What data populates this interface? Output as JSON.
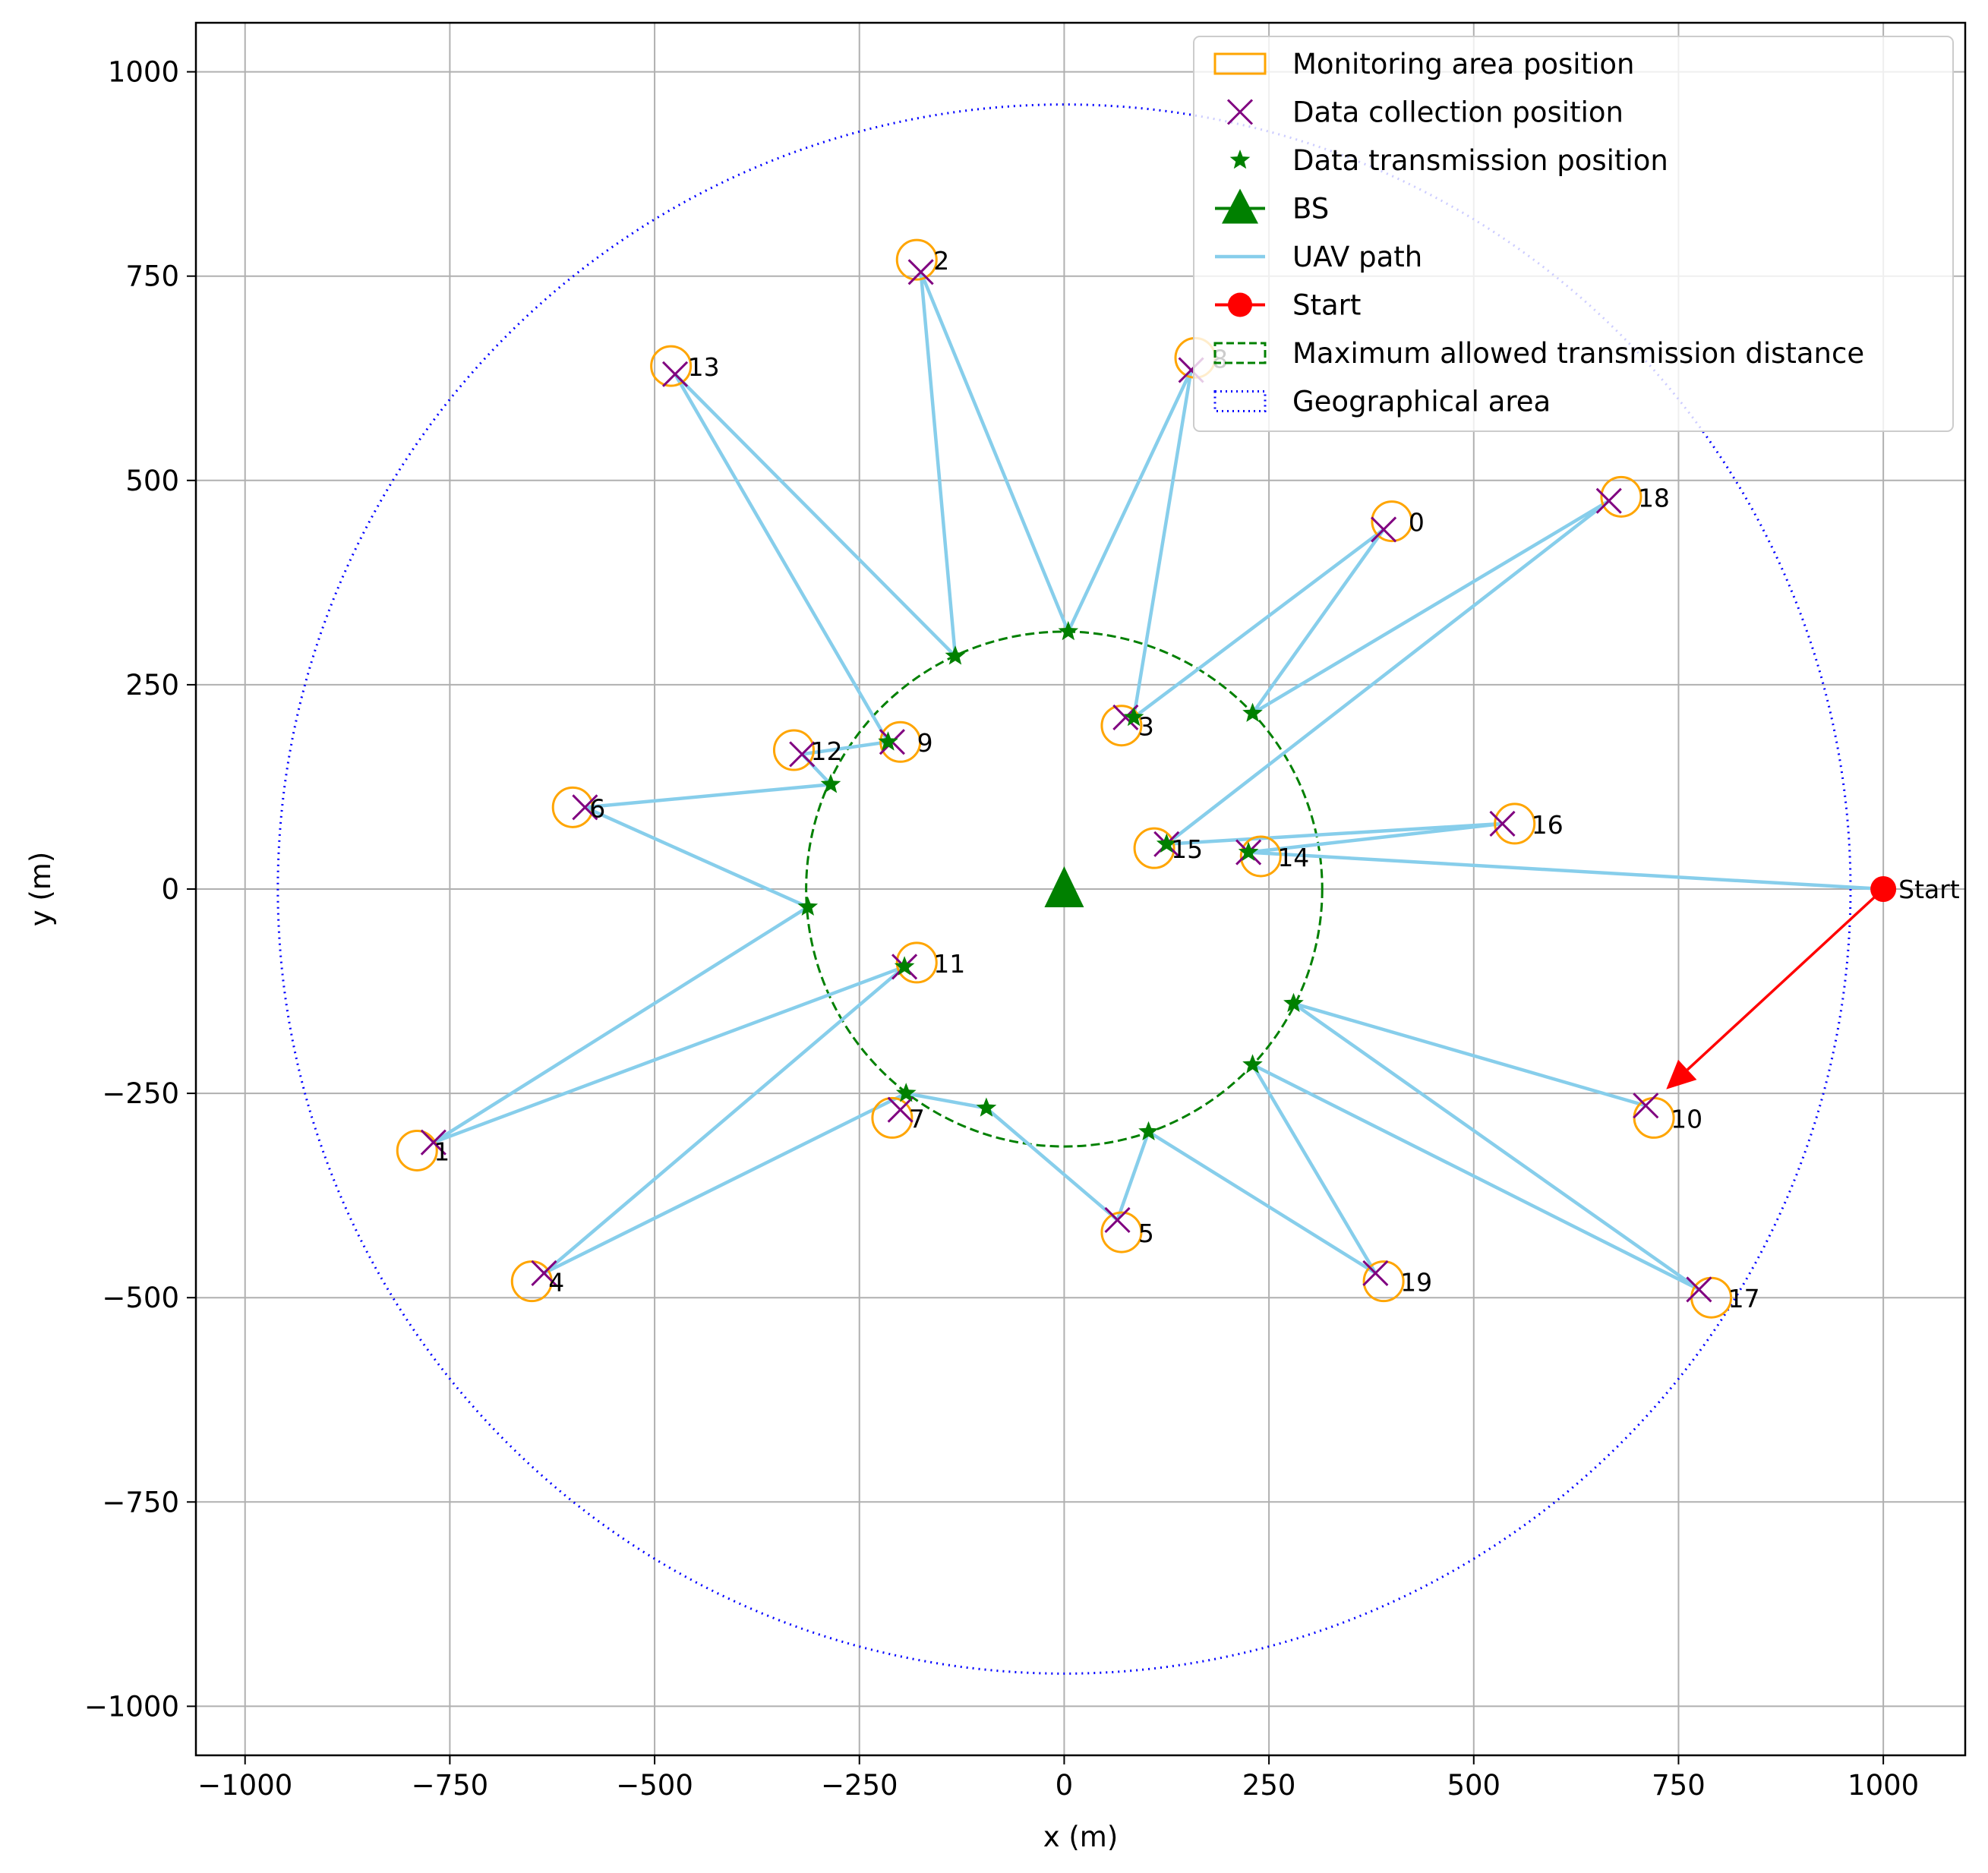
{
  "chart_data": {
    "type": "scatter",
    "title": "",
    "xlabel": "x (m)",
    "ylabel": "y (m)",
    "xlim": [
      -1060,
      1100
    ],
    "ylim": [
      -1060,
      1060
    ],
    "xticks": [
      -1000,
      -750,
      -500,
      -250,
      0,
      250,
      500,
      750,
      1000
    ],
    "yticks": [
      -1000,
      -750,
      -500,
      -250,
      0,
      250,
      500,
      750,
      1000
    ],
    "xtick_labels": [
      "−1000",
      "−750",
      "−500",
      "−250",
      "0",
      "250",
      "500",
      "750",
      "1000"
    ],
    "ytick_labels": [
      "−1000",
      "−750",
      "−500",
      "−250",
      "0",
      "250",
      "500",
      "750",
      "1000"
    ],
    "grid": true,
    "legend_position": "top-right",
    "colors": {
      "monitoring": "#ffa500",
      "collection": "#800080",
      "transmission": "#008000",
      "bs": "#008000",
      "path": "#87ceeb",
      "start": "#ff0000",
      "max_distance": "#008000",
      "geo_area": "#0000ff",
      "grid": "#b0b0b0"
    },
    "legend": [
      {
        "key": "monitoring",
        "label": "Monitoring area position"
      },
      {
        "key": "collection",
        "label": "Data collection position"
      },
      {
        "key": "transmission",
        "label": "Data transmission position"
      },
      {
        "key": "bs",
        "label": "BS"
      },
      {
        "key": "path",
        "label": "UAV path"
      },
      {
        "key": "start",
        "label": "Start"
      },
      {
        "key": "max_distance",
        "label": "Maximum allowed transmission distance"
      },
      {
        "key": "geo_area",
        "label": "Geographical area"
      }
    ],
    "geographical_area_radius": 960,
    "max_transmission_radius": 315,
    "bs": {
      "x": 0,
      "y": 0
    },
    "start": {
      "x": 1000,
      "y": 0,
      "label": "Start"
    },
    "return_arrow": {
      "from": {
        "x": 1000,
        "y": 0
      },
      "to": {
        "x": 735,
        "y": -245
      }
    },
    "monitoring_areas": [
      {
        "id": "0",
        "x": 400,
        "y": 450
      },
      {
        "id": "1",
        "x": -790,
        "y": -320
      },
      {
        "id": "2",
        "x": -180,
        "y": 770
      },
      {
        "id": "3",
        "x": 70,
        "y": 200
      },
      {
        "id": "4",
        "x": -650,
        "y": -480
      },
      {
        "id": "5",
        "x": 70,
        "y": -420
      },
      {
        "id": "6",
        "x": -600,
        "y": 100
      },
      {
        "id": "7",
        "x": -210,
        "y": -280
      },
      {
        "id": "8",
        "x": 160,
        "y": 650
      },
      {
        "id": "9",
        "x": -200,
        "y": 180
      },
      {
        "id": "10",
        "x": 720,
        "y": -280
      },
      {
        "id": "11",
        "x": -180,
        "y": -90
      },
      {
        "id": "12",
        "x": -330,
        "y": 170
      },
      {
        "id": "13",
        "x": -480,
        "y": 640
      },
      {
        "id": "14",
        "x": 240,
        "y": 40
      },
      {
        "id": "15",
        "x": 110,
        "y": 50
      },
      {
        "id": "16",
        "x": 550,
        "y": 80
      },
      {
        "id": "17",
        "x": 790,
        "y": -500
      },
      {
        "id": "18",
        "x": 680,
        "y": 480
      },
      {
        "id": "19",
        "x": 390,
        "y": -480
      }
    ],
    "collection_positions": [
      {
        "id": "0",
        "x": 390,
        "y": 440
      },
      {
        "id": "1",
        "x": -770,
        "y": -310
      },
      {
        "id": "2",
        "x": -175,
        "y": 755
      },
      {
        "id": "3",
        "x": 75,
        "y": 210
      },
      {
        "id": "4",
        "x": -635,
        "y": -470
      },
      {
        "id": "5",
        "x": 65,
        "y": -405
      },
      {
        "id": "6",
        "x": -585,
        "y": 100
      },
      {
        "id": "7",
        "x": -200,
        "y": -270
      },
      {
        "id": "8",
        "x": 155,
        "y": 635
      },
      {
        "id": "9",
        "x": -210,
        "y": 180
      },
      {
        "id": "10",
        "x": 710,
        "y": -265
      },
      {
        "id": "11",
        "x": -195,
        "y": -95
      },
      {
        "id": "12",
        "x": -320,
        "y": 165
      },
      {
        "id": "13",
        "x": -475,
        "y": 630
      },
      {
        "id": "14",
        "x": 225,
        "y": 45
      },
      {
        "id": "15",
        "x": 125,
        "y": 55
      },
      {
        "id": "16",
        "x": 535,
        "y": 80
      },
      {
        "id": "17",
        "x": 775,
        "y": -490
      },
      {
        "id": "18",
        "x": 665,
        "y": 475
      },
      {
        "id": "19",
        "x": 380,
        "y": -470
      }
    ],
    "transmission_positions": [
      {
        "x": 5,
        "y": 315
      },
      {
        "x": -133,
        "y": 285
      },
      {
        "x": 230,
        "y": 215
      },
      {
        "x": 85,
        "y": 210
      },
      {
        "x": -215,
        "y": 180
      },
      {
        "x": -285,
        "y": 128
      },
      {
        "x": 125,
        "y": 55
      },
      {
        "x": 225,
        "y": 45
      },
      {
        "x": -313,
        "y": -22
      },
      {
        "x": -195,
        "y": -95
      },
      {
        "x": 280,
        "y": -140
      },
      {
        "x": 230,
        "y": -215
      },
      {
        "x": -193,
        "y": -250
      },
      {
        "x": -95,
        "y": -268
      },
      {
        "x": 103,
        "y": -297
      }
    ],
    "uav_path": [
      {
        "x": 1000,
        "y": 0
      },
      {
        "x": 225,
        "y": 45
      },
      {
        "x": 535,
        "y": 80
      },
      {
        "x": 125,
        "y": 55
      },
      {
        "x": 665,
        "y": 475
      },
      {
        "x": 230,
        "y": 215
      },
      {
        "x": 390,
        "y": 440
      },
      {
        "x": 85,
        "y": 210
      },
      {
        "x": 155,
        "y": 635
      },
      {
        "x": 5,
        "y": 315
      },
      {
        "x": -175,
        "y": 755
      },
      {
        "x": -133,
        "y": 285
      },
      {
        "x": -475,
        "y": 630
      },
      {
        "x": -215,
        "y": 180
      },
      {
        "x": -320,
        "y": 165
      },
      {
        "x": -285,
        "y": 128
      },
      {
        "x": -585,
        "y": 100
      },
      {
        "x": -313,
        "y": -22
      },
      {
        "x": -770,
        "y": -310
      },
      {
        "x": -195,
        "y": -95
      },
      {
        "x": -635,
        "y": -470
      },
      {
        "x": -193,
        "y": -250
      },
      {
        "x": -95,
        "y": -268
      },
      {
        "x": 65,
        "y": -405
      },
      {
        "x": 103,
        "y": -297
      },
      {
        "x": 380,
        "y": -470
      },
      {
        "x": 230,
        "y": -215
      },
      {
        "x": 775,
        "y": -490
      },
      {
        "x": 280,
        "y": -140
      },
      {
        "x": 710,
        "y": -265
      }
    ]
  }
}
